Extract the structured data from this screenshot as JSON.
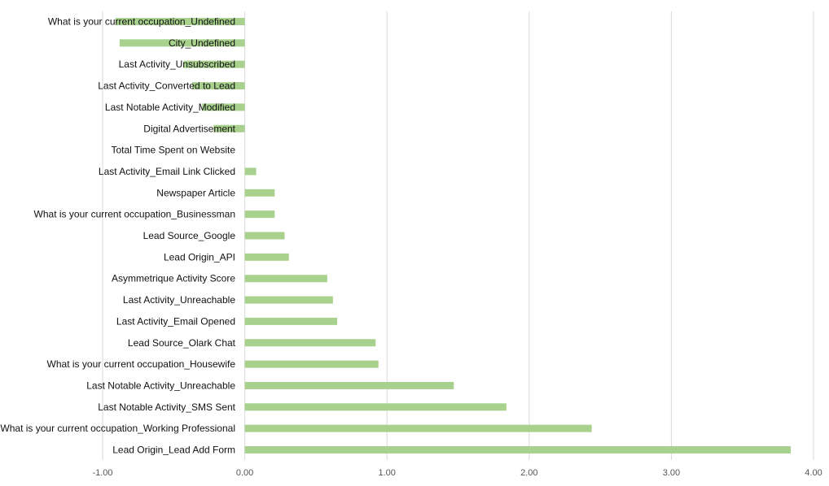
{
  "chart_data": {
    "type": "bar",
    "orientation": "horizontal",
    "categories": [
      "What is your current occupation_Undefined",
      "City_Undefined",
      "Last Activity_Unsubscribed",
      "Last Activity_Converted to Lead",
      "Last Notable Activity_Modified",
      "Digital Advertisement",
      "Total Time Spent on Website",
      "Last Activity_Email Link Clicked",
      "Newspaper Article",
      "What is your current occupation_Businessman",
      "Lead Source_Google",
      "Lead Origin_API",
      "Asymmetrique Activity Score",
      "Last Activity_Unreachable",
      "Last Activity_Email Opened",
      "Lead Source_Olark Chat",
      "What is your current occupation_Housewife",
      "Last Notable Activity_Unreachable",
      "Last Notable Activity_SMS Sent",
      "What is your current occupation_Working Professional",
      "Lead Origin_Lead Add Form"
    ],
    "values": [
      -0.91,
      -0.88,
      -0.43,
      -0.37,
      -0.3,
      -0.22,
      0.0,
      0.08,
      0.21,
      0.21,
      0.28,
      0.31,
      0.58,
      0.62,
      0.65,
      0.92,
      0.94,
      1.47,
      1.84,
      2.44,
      3.84
    ],
    "xlim": [
      -1.0,
      4.0
    ],
    "xticks": [
      "-1.00",
      "0.00",
      "1.00",
      "2.00",
      "3.00",
      "4.00"
    ],
    "xtick_values": [
      -1,
      0,
      1,
      2,
      3,
      4
    ],
    "title": "",
    "xlabel": "",
    "ylabel": "",
    "grid": "vertical",
    "legend": "none",
    "colors": {
      "bar": "#a9d18e",
      "grid": "#d9d9d9",
      "text": "#111111",
      "tick_text": "#555555"
    }
  }
}
